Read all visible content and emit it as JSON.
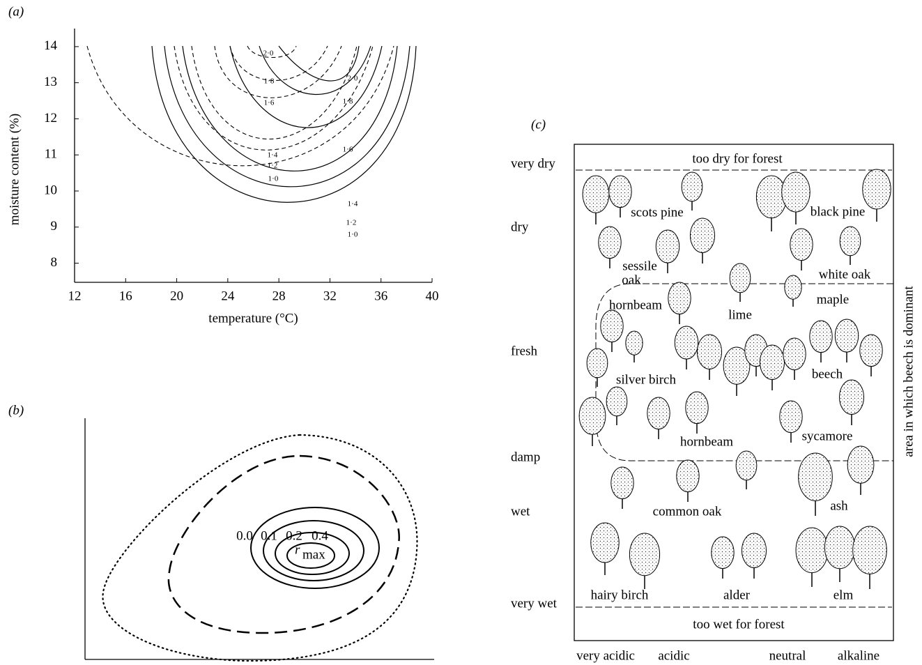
{
  "chart_data": {
    "type": "contour",
    "panel_label": "(a)",
    "x_label": "temperature (°C)",
    "y_label": "moisture content (%)",
    "xlim": [
      12,
      40
    ],
    "xticks": [
      12,
      16,
      20,
      24,
      28,
      32,
      36,
      40
    ],
    "ylim": [
      7.47,
      14.5
    ],
    "yticks": [
      8,
      9,
      10,
      11,
      12,
      13,
      14
    ],
    "contour_labels_dashed": [
      {
        "value": 2,
        "label": "2·0"
      },
      {
        "value": 1.8,
        "label": "1·8"
      },
      {
        "value": 1.6,
        "label": "1·6"
      },
      {
        "value": 1.4,
        "label": "1·4"
      },
      {
        "value": 1.2,
        "label": "1·2"
      },
      {
        "value": 1,
        "label": "1·0"
      }
    ],
    "contour_labels_solid": [
      {
        "value": 2,
        "label": "2·0"
      },
      {
        "value": 1.8,
        "label": "1·8"
      },
      {
        "value": 1.6,
        "label": "1·6"
      },
      {
        "value": 1.4,
        "label": "1·4"
      },
      {
        "value": 1.2,
        "label": "1·2"
      },
      {
        "value": 1,
        "label": "1·0"
      }
    ]
  },
  "panel_b": {
    "panel_label": "(b)",
    "contour_labels": [
      "0.0",
      "0.1",
      "0.2",
      "0.4"
    ],
    "peak": {
      "symbol": "r",
      "subscript": "max"
    }
  },
  "panel_c": {
    "panel_label": "(c)",
    "top_zone": "too dry for forest",
    "bottom_zone": "too wet for forest",
    "side_label": "area in which beech is dominant",
    "row_labels": [
      "very dry",
      "dry",
      "fresh",
      "damp",
      "wet",
      "very wet"
    ],
    "soil_labels": [
      "very acidic",
      "acidic",
      "neutral",
      "alkaline"
    ],
    "tree_labels": [
      "scots pine",
      "black pine",
      "sessile",
      "oak",
      "white oak",
      "hornbeam",
      "lime",
      "maple",
      "silver birch",
      "beech",
      "hornbeam",
      "sycamore",
      "common oak",
      "ash",
      "hairy birch",
      "alder",
      "elm"
    ]
  }
}
